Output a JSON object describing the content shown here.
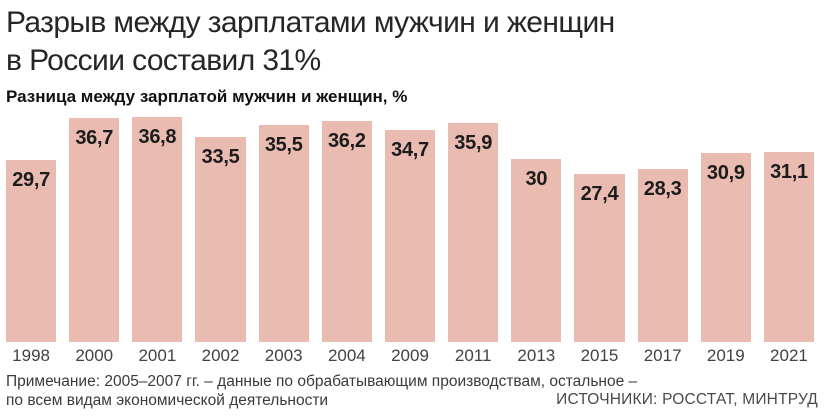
{
  "header": {
    "title_line1": "Разрыв между зарплатами мужчин и женщин",
    "title_line2": "в России составил 31%",
    "subtitle": "Разница между зарплатой мужчин и женщин, %"
  },
  "chart_data": {
    "type": "bar",
    "categories": [
      "1998",
      "2000",
      "2001",
      "2002",
      "2003",
      "2004",
      "2009",
      "2011",
      "2013",
      "2015",
      "2017",
      "2019",
      "2021"
    ],
    "values": [
      29.7,
      36.7,
      36.8,
      33.5,
      35.5,
      36.2,
      34.7,
      35.9,
      30,
      27.4,
      28.3,
      30.9,
      31.1
    ],
    "value_labels": [
      "29,7",
      "36,7",
      "36,8",
      "33,5",
      "35,5",
      "36,2",
      "34,7",
      "35,9",
      "30",
      "27,4",
      "28,3",
      "30,9",
      "31,1"
    ],
    "title": "Разница между зарплатой мужчин и женщин, %",
    "xlabel": "",
    "ylabel": "",
    "ylim": [
      0,
      36.8
    ],
    "grid": false,
    "legend": "none",
    "value_labels_position": "inside-top",
    "bar_color": "#eabbb1",
    "value_label_color": "#1c1c1c"
  },
  "footer": {
    "note_line1": "Примечание: 2005–2007 гг. – данные по обрабатывающим производствам, остальное –",
    "note_line2": "по всем видам экономической деятельности",
    "source": "ИСТОЧНИКИ: РОССТАТ, МИНТРУД"
  }
}
